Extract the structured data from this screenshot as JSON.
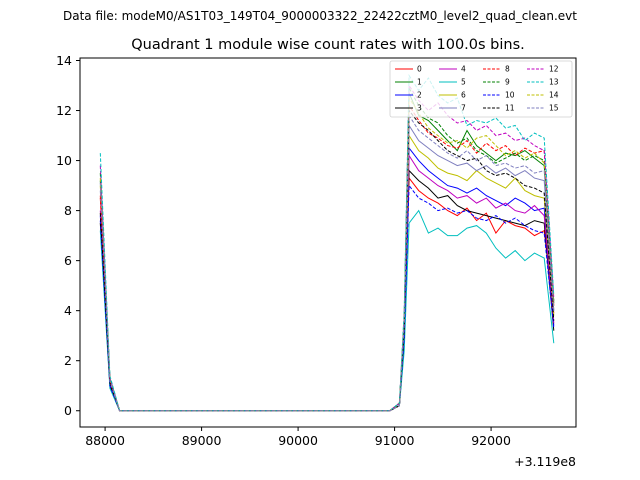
{
  "figure": {
    "suptitle": "Data file: modeM0/AS1T03_149T04_9000003322_22422cztM0_level2_quad_clean.evt"
  },
  "chart_data": {
    "type": "line",
    "title": "Quadrant 1 module wise count rates with 100.0s bins.",
    "xlabel": "",
    "ylabel": "",
    "x_offset_label": "+3.119e8",
    "xlim": [
      87740,
      92880
    ],
    "ylim": [
      -0.65,
      14.1
    ],
    "xticks": [
      88000,
      89000,
      90000,
      91000,
      92000
    ],
    "xtick_labels": [
      "88000",
      "89000",
      "90000",
      "91000",
      "92000"
    ],
    "yticks": [
      0,
      2,
      4,
      6,
      8,
      10,
      12,
      14
    ],
    "ytick_labels": [
      "0",
      "2",
      "4",
      "6",
      "8",
      "10",
      "12",
      "14"
    ],
    "grid": false,
    "legend_position": "top-right",
    "x": [
      87950,
      88050,
      88150,
      88250,
      88350,
      88450,
      88550,
      88650,
      88750,
      88850,
      88950,
      89050,
      89150,
      89250,
      89350,
      89450,
      89550,
      89650,
      89750,
      89850,
      89950,
      90050,
      90150,
      90250,
      90350,
      90450,
      90550,
      90650,
      90750,
      90850,
      90950,
      91050,
      91100,
      91150,
      91250,
      91350,
      91450,
      91550,
      91650,
      91750,
      91850,
      91950,
      92050,
      92150,
      92250,
      92350,
      92450,
      92550,
      92650
    ],
    "series": [
      {
        "name": "0",
        "color": "#ff0000",
        "dash": "solid",
        "values": [
          8.5,
          1.2,
          0,
          0,
          0,
          0,
          0,
          0,
          0,
          0,
          0,
          0,
          0,
          0,
          0,
          0,
          0,
          0,
          0,
          0,
          0,
          0,
          0,
          0,
          0,
          0,
          0,
          0,
          0,
          0,
          0,
          0.2,
          3.2,
          9.3,
          8.8,
          8.5,
          8.3,
          8.0,
          7.8,
          8.1,
          7.6,
          7.9,
          7.1,
          7.6,
          7.4,
          7.3,
          7.0,
          7.2,
          3.9
        ]
      },
      {
        "name": "1",
        "color": "#008000",
        "dash": "solid",
        "values": [
          9.2,
          1.3,
          0,
          0,
          0,
          0,
          0,
          0,
          0,
          0,
          0,
          0,
          0,
          0,
          0,
          0,
          0,
          0,
          0,
          0,
          0,
          0,
          0,
          0,
          0,
          0,
          0,
          0,
          0,
          0,
          0,
          0.3,
          3.6,
          12.7,
          11.8,
          11.6,
          11.2,
          10.8,
          10.4,
          11.2,
          10.6,
          10.3,
          10.0,
          10.3,
          10.2,
          10.4,
          10.1,
          9.8,
          4.3
        ]
      },
      {
        "name": "2",
        "color": "#0000ff",
        "dash": "solid",
        "values": [
          7.8,
          1.1,
          0,
          0,
          0,
          0,
          0,
          0,
          0,
          0,
          0,
          0,
          0,
          0,
          0,
          0,
          0,
          0,
          0,
          0,
          0,
          0,
          0,
          0,
          0,
          0,
          0,
          0,
          0,
          0,
          0,
          0.2,
          3.0,
          10.5,
          10.0,
          9.6,
          9.3,
          9.0,
          8.9,
          8.7,
          8.9,
          8.6,
          8.4,
          8.2,
          8.5,
          8.3,
          8.0,
          8.1,
          3.4
        ]
      },
      {
        "name": "3",
        "color": "#000000",
        "dash": "solid",
        "values": [
          7.5,
          1.0,
          0,
          0,
          0,
          0,
          0,
          0,
          0,
          0,
          0,
          0,
          0,
          0,
          0,
          0,
          0,
          0,
          0,
          0,
          0,
          0,
          0,
          0,
          0,
          0,
          0,
          0,
          0,
          0,
          0,
          0.2,
          2.9,
          9.6,
          9.2,
          8.9,
          8.5,
          8.6,
          8.2,
          8.0,
          7.9,
          7.8,
          7.7,
          7.6,
          7.5,
          7.4,
          7.6,
          7.5,
          3.2
        ]
      },
      {
        "name": "4",
        "color": "#bf00bf",
        "dash": "solid",
        "values": [
          8.0,
          1.1,
          0,
          0,
          0,
          0,
          0,
          0,
          0,
          0,
          0,
          0,
          0,
          0,
          0,
          0,
          0,
          0,
          0,
          0,
          0,
          0,
          0,
          0,
          0,
          0,
          0,
          0,
          0,
          0,
          0,
          0.2,
          3.1,
          10.2,
          9.6,
          9.3,
          9.0,
          8.8,
          8.5,
          8.6,
          8.3,
          8.5,
          8.1,
          8.3,
          8.0,
          7.9,
          8.2,
          7.8,
          3.5
        ]
      },
      {
        "name": "5",
        "color": "#00bfbf",
        "dash": "solid",
        "values": [
          7.2,
          0.9,
          0,
          0,
          0,
          0,
          0,
          0,
          0,
          0,
          0,
          0,
          0,
          0,
          0,
          0,
          0,
          0,
          0,
          0,
          0,
          0,
          0,
          0,
          0,
          0,
          0,
          0,
          0,
          0,
          0,
          0.2,
          2.4,
          7.5,
          8.0,
          7.1,
          7.3,
          7.0,
          7.0,
          7.3,
          7.4,
          7.1,
          6.5,
          6.1,
          6.4,
          6.0,
          6.3,
          6.1,
          2.7
        ]
      },
      {
        "name": "6",
        "color": "#bfbf00",
        "dash": "solid",
        "values": [
          9.0,
          1.2,
          0,
          0,
          0,
          0,
          0,
          0,
          0,
          0,
          0,
          0,
          0,
          0,
          0,
          0,
          0,
          0,
          0,
          0,
          0,
          0,
          0,
          0,
          0,
          0,
          0,
          0,
          0,
          0,
          0,
          0.2,
          3.3,
          11.0,
          10.4,
          10.1,
          9.7,
          9.5,
          9.4,
          9.2,
          9.6,
          9.3,
          9.1,
          8.9,
          9.3,
          8.8,
          8.6,
          8.5,
          3.8
        ]
      },
      {
        "name": "7",
        "color": "#7f7fbf",
        "dash": "solid",
        "values": [
          8.8,
          1.2,
          0,
          0,
          0,
          0,
          0,
          0,
          0,
          0,
          0,
          0,
          0,
          0,
          0,
          0,
          0,
          0,
          0,
          0,
          0,
          0,
          0,
          0,
          0,
          0,
          0,
          0,
          0,
          0,
          0,
          0.2,
          3.4,
          11.4,
          10.8,
          10.5,
          10.2,
          10.0,
          9.8,
          9.9,
          9.6,
          9.8,
          9.5,
          9.7,
          9.4,
          9.6,
          9.3,
          9.2,
          4.0
        ]
      },
      {
        "name": "8",
        "color": "#ff0000",
        "dash": "dashed",
        "values": [
          8.6,
          1.2,
          0,
          0,
          0,
          0,
          0,
          0,
          0,
          0,
          0,
          0,
          0,
          0,
          0,
          0,
          0,
          0,
          0,
          0,
          0,
          0,
          0,
          0,
          0,
          0,
          0,
          0,
          0,
          0,
          0,
          0.3,
          3.5,
          12.2,
          11.6,
          11.1,
          10.9,
          10.6,
          10.5,
          10.8,
          10.3,
          10.7,
          10.4,
          10.6,
          10.2,
          10.5,
          10.3,
          10.4,
          4.2
        ]
      },
      {
        "name": "9",
        "color": "#008000",
        "dash": "dashed",
        "values": [
          9.5,
          1.3,
          0,
          0,
          0,
          0,
          0,
          0,
          0,
          0,
          0,
          0,
          0,
          0,
          0,
          0,
          0,
          0,
          0,
          0,
          0,
          0,
          0,
          0,
          0,
          0,
          0,
          0,
          0,
          0,
          0,
          0.3,
          3.7,
          12.9,
          12.2,
          11.7,
          11.5,
          11.0,
          10.7,
          10.9,
          10.4,
          10.2,
          9.9,
          10.1,
          10.3,
          10.0,
          10.2,
          10.0,
          4.4
        ]
      },
      {
        "name": "10",
        "color": "#0000ff",
        "dash": "dashed",
        "values": [
          7.6,
          1.0,
          0,
          0,
          0,
          0,
          0,
          0,
          0,
          0,
          0,
          0,
          0,
          0,
          0,
          0,
          0,
          0,
          0,
          0,
          0,
          0,
          0,
          0,
          0,
          0,
          0,
          0,
          0,
          0,
          0,
          0.2,
          2.9,
          9.0,
          8.5,
          8.3,
          8.0,
          8.1,
          7.9,
          8.0,
          7.7,
          7.6,
          7.8,
          7.5,
          7.7,
          7.4,
          7.2,
          7.1,
          3.3
        ]
      },
      {
        "name": "11",
        "color": "#000000",
        "dash": "dashed",
        "values": [
          7.9,
          1.1,
          0,
          0,
          0,
          0,
          0,
          0,
          0,
          0,
          0,
          0,
          0,
          0,
          0,
          0,
          0,
          0,
          0,
          0,
          0,
          0,
          0,
          0,
          0,
          0,
          0,
          0,
          0,
          0,
          0,
          0.2,
          3.2,
          12.0,
          11.5,
          11.2,
          10.8,
          10.4,
          10.2,
          10.0,
          10.1,
          9.6,
          9.4,
          9.5,
          9.3,
          9.0,
          8.9,
          8.7,
          3.6
        ]
      },
      {
        "name": "12",
        "color": "#bf00bf",
        "dash": "dashed",
        "values": [
          9.8,
          1.3,
          0,
          0,
          0,
          0,
          0,
          0,
          0,
          0,
          0,
          0,
          0,
          0,
          0,
          0,
          0,
          0,
          0,
          0,
          0,
          0,
          0,
          0,
          0,
          0,
          0,
          0,
          0,
          0,
          0,
          0.3,
          3.8,
          13.0,
          12.4,
          12.0,
          12.3,
          11.8,
          11.5,
          11.6,
          11.2,
          11.4,
          11.0,
          11.1,
          10.8,
          10.9,
          10.6,
          10.4,
          4.5
        ]
      },
      {
        "name": "13",
        "color": "#00bfbf",
        "dash": "dashed",
        "values": [
          10.3,
          1.4,
          0,
          0,
          0,
          0,
          0,
          0,
          0,
          0,
          0,
          0,
          0,
          0,
          0,
          0,
          0,
          0,
          0,
          0,
          0,
          0,
          0,
          0,
          0,
          0,
          0,
          0,
          0,
          0,
          0,
          0.3,
          4.0,
          13.4,
          12.8,
          13.3,
          12.6,
          12.3,
          12.5,
          11.4,
          11.6,
          11.5,
          11.7,
          11.3,
          11.4,
          10.8,
          11.1,
          10.9,
          4.6
        ]
      },
      {
        "name": "14",
        "color": "#bfbf00",
        "dash": "dashed",
        "values": [
          9.3,
          1.2,
          0,
          0,
          0,
          0,
          0,
          0,
          0,
          0,
          0,
          0,
          0,
          0,
          0,
          0,
          0,
          0,
          0,
          0,
          0,
          0,
          0,
          0,
          0,
          0,
          0,
          0,
          0,
          0,
          0,
          0.2,
          3.6,
          12.5,
          11.9,
          11.3,
          11.0,
          10.7,
          10.8,
          10.5,
          10.9,
          11.0,
          10.6,
          10.2,
          10.4,
          10.1,
          10.3,
          9.9,
          4.1
        ]
      },
      {
        "name": "15",
        "color": "#7f7fbf",
        "dash": "dashed",
        "values": [
          9.1,
          1.2,
          0,
          0,
          0,
          0,
          0,
          0,
          0,
          0,
          0,
          0,
          0,
          0,
          0,
          0,
          0,
          0,
          0,
          0,
          0,
          0,
          0,
          0,
          0,
          0,
          0,
          0,
          0,
          0,
          0,
          0.2,
          3.5,
          11.8,
          11.2,
          10.9,
          10.6,
          10.3,
          10.1,
          10.4,
          10.0,
          10.2,
          9.8,
          9.9,
          9.7,
          9.8,
          9.5,
          9.6,
          4.0
        ]
      }
    ]
  }
}
